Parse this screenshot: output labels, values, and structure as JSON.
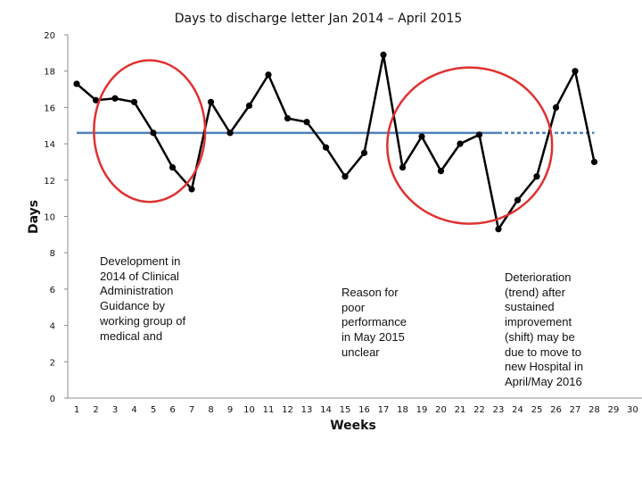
{
  "chart_data": {
    "type": "line",
    "title": "Days to discharge letter Jan 2014 – April 2015",
    "xlabel": "Weeks",
    "ylabel": "Days",
    "ylim": [
      0,
      20
    ],
    "yticks": [
      0,
      2,
      4,
      6,
      8,
      10,
      12,
      14,
      16,
      18,
      20
    ],
    "xticks": [
      1,
      2,
      3,
      4,
      5,
      6,
      7,
      8,
      9,
      10,
      11,
      12,
      13,
      14,
      15,
      16,
      17,
      18,
      19,
      20,
      21,
      22,
      23,
      24,
      25,
      26,
      27,
      28,
      29,
      30
    ],
    "grid": false,
    "series": [
      {
        "color": "#000000",
        "x": [
          1,
          2,
          3,
          4,
          5,
          6,
          7,
          8,
          9,
          10,
          11,
          12,
          13,
          14,
          15,
          16,
          17,
          18,
          19,
          20,
          21,
          22,
          23,
          24,
          25,
          26,
          27,
          28
        ],
        "y": [
          17.3,
          16.4,
          16.5,
          16.3,
          14.6,
          12.7,
          11.5,
          16.3,
          14.6,
          16.1,
          17.8,
          15.4,
          15.2,
          13.8,
          12.2,
          13.5,
          18.9,
          12.7,
          14.4,
          12.5,
          14.0,
          14.5,
          9.3,
          10.9,
          12.2,
          16.0,
          18.0,
          13.0
        ]
      }
    ],
    "reference_line": {
      "color": "#4f81bd",
      "y": 14.6,
      "x_from": 1,
      "x_to": 28,
      "dashed_from": 23
    },
    "highlight_circles": [
      {
        "color": "#e03030",
        "x_center": 4.8,
        "y_center": 14.7,
        "x_radius": 2.9,
        "y_radius": 3.9
      },
      {
        "color": "#e03030",
        "x_center": 21.5,
        "y_center": 13.9,
        "x_radius": 4.3,
        "y_radius": 4.3
      }
    ],
    "annotations": [
      {
        "text": "Development  in\n2014 of Clinical\nAdministration\nGuidance by\nworking group of\nmedical and"
      },
      {
        "text": "Reason for\npoor\nperformance\nin May 2015\nunclear"
      },
      {
        "text": "Deterioration\n(trend) after\nsustained\nimprovement\n(shift) may be\ndue to move to\nnew Hospital  in\nApril/May 2016"
      }
    ]
  }
}
